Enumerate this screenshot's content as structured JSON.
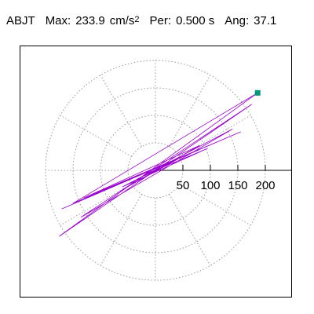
{
  "title": {
    "station": "ABJT",
    "max_label": "Max:",
    "max_value": "233.9",
    "max_unit": "cm/s",
    "max_unit_sup": "2",
    "per_label": "Per:",
    "per_value": "0.500 s",
    "ang_label": "Ang:",
    "ang_value": "37.1"
  },
  "chart_data": {
    "type": "line",
    "title": "ABJT Max: 233.9 cm/s2 Per: 0.500 s Ang: 37.1",
    "xlabel": "",
    "ylabel": "",
    "polar_grid": true,
    "radial_ticks": [
      50,
      100,
      150,
      200
    ],
    "radial_tick_labels": [
      "50",
      "100",
      "150",
      "200"
    ],
    "angular_spokes_deg": [
      0,
      30,
      60,
      90,
      120,
      150,
      180,
      210,
      240,
      270,
      300,
      330
    ],
    "xlim": [
      -245,
      245
    ],
    "ylim": [
      -245,
      245
    ],
    "series": [
      {
        "color": "#9900cc",
        "peak": {
          "x": 186,
          "y": 141,
          "marker_color": "#009977"
        },
        "x": [
          0,
          95,
          -60,
          140,
          -135,
          175,
          -175,
          186,
          -150,
          155,
          -170,
          120,
          -130,
          80,
          -60,
          40,
          -20,
          0
        ],
        "y": [
          0,
          40,
          -30,
          75,
          -85,
          120,
          -120,
          141,
          -60,
          70,
          -70,
          55,
          -50,
          45,
          -35,
          20,
          -10,
          0
        ]
      }
    ]
  }
}
